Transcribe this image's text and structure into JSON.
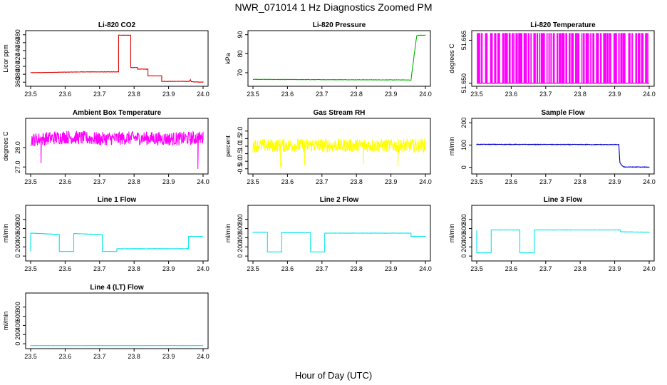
{
  "figure": {
    "title": "NWR_071014  1 Hz Diagnostics Zoomed PM",
    "xlabel": "Hour of Day (UTC)"
  },
  "chart_data": [
    {
      "type": "line",
      "title": "Li-820 CO2",
      "ylabel": "Licor ppm",
      "color": "#dd0000",
      "xlim": [
        23.5,
        24.0
      ],
      "xticks": [
        23.5,
        23.6,
        23.7,
        23.8,
        23.9,
        24.0
      ],
      "xtick_labels": [
        "23.5",
        "23.6",
        "23.7",
        "23.8",
        "23.9",
        "24.0"
      ],
      "ylim": [
        355,
        485
      ],
      "yticks": [
        360,
        380,
        400,
        420,
        440,
        460,
        480
      ],
      "ytick_labels": [
        "360",
        "380",
        "400",
        "420",
        "440",
        "460",
        "480"
      ],
      "noise": 0.4,
      "x": [
        23.5,
        23.65,
        23.755,
        23.755,
        23.79,
        23.79,
        23.81,
        23.81,
        23.84,
        23.84,
        23.88,
        23.88,
        23.96,
        23.963,
        23.966,
        24.0
      ],
      "y": [
        384,
        386,
        386,
        479,
        479,
        397,
        397,
        393,
        393,
        376,
        376,
        362,
        362,
        366,
        361,
        360
      ]
    },
    {
      "type": "line",
      "title": "Li-820 Pressure",
      "ylabel": "kPa",
      "color": "#00b000",
      "xlim": [
        23.5,
        24.0
      ],
      "xticks": [
        23.5,
        23.6,
        23.7,
        23.8,
        23.9,
        24.0
      ],
      "xtick_labels": [
        "23.5",
        "23.6",
        "23.7",
        "23.8",
        "23.9",
        "24.0"
      ],
      "ylim": [
        64,
        91
      ],
      "yticks": [
        70,
        80,
        90
      ],
      "ytick_labels": [
        "70",
        "80",
        "90"
      ],
      "noise": 0.1,
      "x": [
        23.5,
        23.95,
        23.958,
        23.97,
        23.975,
        23.98,
        24.0
      ],
      "y": [
        66.5,
        66.2,
        66,
        83,
        89.5,
        89.7,
        89.7
      ]
    },
    {
      "type": "bars",
      "title": "Li-820 Temperature",
      "ylabel": "degrees C",
      "color": "#ff00ff",
      "xlim": [
        23.5,
        24.0
      ],
      "xticks": [
        23.5,
        23.6,
        23.7,
        23.8,
        23.9,
        24.0
      ],
      "xtick_labels": [
        "23.5",
        "23.6",
        "23.7",
        "23.8",
        "23.9",
        "24.0"
      ],
      "ylim": [
        51.6497,
        51.6676
      ],
      "yticks": [
        51.65,
        51.665
      ],
      "ytick_labels": [
        "51.650",
        "51.665"
      ],
      "y_low": 51.65,
      "y_high": 51.6675,
      "bar_count": 70
    },
    {
      "type": "line",
      "title": "Ambient Box Temperature",
      "ylabel": "degrees C",
      "color": "#ff00ff",
      "xlim": [
        23.5,
        24.0
      ],
      "xticks": [
        23.5,
        23.6,
        23.7,
        23.8,
        23.9,
        24.0
      ],
      "xtick_labels": [
        "23.5",
        "23.6",
        "23.7",
        "23.8",
        "23.9",
        "24.0"
      ],
      "ylim": [
        26.75,
        29.4
      ],
      "yticks": [
        27.0,
        28.0
      ],
      "ytick_labels": [
        "27.0",
        "28.0"
      ],
      "noise": 0.35,
      "x": [
        23.5,
        23.6,
        23.7,
        23.8,
        23.9,
        24.0
      ],
      "y": [
        28.4,
        28.55,
        28.45,
        28.5,
        28.45,
        28.5
      ],
      "spikes_x": [
        23.53,
        23.985
      ],
      "spikes_y": [
        27.2,
        26.9
      ]
    },
    {
      "type": "line",
      "title": "Gas Stream RH",
      "ylabel": "percent",
      "color": "#ffff00",
      "xlim": [
        23.5,
        24.0
      ],
      "xticks": [
        23.5,
        23.6,
        23.7,
        23.8,
        23.9,
        24.0
      ],
      "xtick_labels": [
        "23.5",
        "23.6",
        "23.7",
        "23.8",
        "23.9",
        "24.0"
      ],
      "ylim": [
        -0.7,
        2.7
      ],
      "yticks": [
        -0.5,
        0.0,
        0.5,
        1.0,
        1.5,
        2.0
      ],
      "ytick_labels": [
        "-0.5",
        "0.0",
        "0.5",
        "1.0",
        "1.5",
        "2.0"
      ],
      "noise": 0.45,
      "x": [
        23.5,
        24.0
      ],
      "y": [
        1.05,
        1.05
      ],
      "spikes_x": [
        23.58,
        23.65,
        23.82,
        23.92
      ],
      "spikes_y": [
        -0.4,
        -0.3,
        -0.2,
        -0.35
      ]
    },
    {
      "type": "line",
      "title": "Sample Flow",
      "ylabel": "ml/min",
      "color": "#0000cc",
      "xlim": [
        23.5,
        24.0
      ],
      "xticks": [
        23.5,
        23.6,
        23.7,
        23.8,
        23.9,
        24.0
      ],
      "xtick_labels": [
        "23.5",
        "23.6",
        "23.7",
        "23.8",
        "23.9",
        "24.0"
      ],
      "ylim": [
        -20,
        210
      ],
      "yticks": [
        0,
        100,
        200
      ],
      "ytick_labels": [
        "0",
        "100",
        "200"
      ],
      "noise": 1.2,
      "x": [
        23.5,
        23.912,
        23.915,
        23.925,
        24.0
      ],
      "y": [
        103,
        102,
        20,
        2,
        1
      ]
    },
    {
      "type": "line",
      "title": "Line 1 Flow",
      "ylabel": "ml/min",
      "color": "#00e5ee",
      "xlim": [
        23.5,
        24.0
      ],
      "xticks": [
        23.5,
        23.6,
        23.7,
        23.8,
        23.9,
        24.0
      ],
      "xtick_labels": [
        "23.5",
        "23.6",
        "23.7",
        "23.8",
        "23.9",
        "24.0"
      ],
      "ylim": [
        -60,
        1060
      ],
      "yticks": [
        0,
        200,
        400,
        600,
        800
      ],
      "ytick_labels": [
        "0",
        "200",
        "400",
        "600",
        "800"
      ],
      "noise": 3,
      "x": [
        23.5,
        23.5,
        23.503,
        23.583,
        23.583,
        23.625,
        23.625,
        23.708,
        23.708,
        23.75,
        23.75,
        23.958,
        23.958,
        24.0
      ],
      "y": [
        100,
        500,
        500,
        470,
        100,
        100,
        490,
        470,
        100,
        100,
        160,
        160,
        430,
        430
      ]
    },
    {
      "type": "line",
      "title": "Line 2 Flow",
      "ylabel": "ml/min",
      "color": "#00e5ee",
      "xlim": [
        23.5,
        24.0
      ],
      "xticks": [
        23.5,
        23.6,
        23.7,
        23.8,
        23.9,
        24.0
      ],
      "xtick_labels": [
        "23.5",
        "23.6",
        "23.7",
        "23.8",
        "23.9",
        "24.0"
      ],
      "ylim": [
        -60,
        1060
      ],
      "yticks": [
        0,
        200,
        400,
        600,
        800
      ],
      "ytick_labels": [
        "0",
        "200",
        "400",
        "600",
        "800"
      ],
      "noise": 3,
      "x": [
        23.5,
        23.542,
        23.542,
        23.583,
        23.583,
        23.667,
        23.667,
        23.708,
        23.708,
        23.958,
        23.958,
        24.0
      ],
      "y": [
        520,
        520,
        90,
        90,
        510,
        510,
        90,
        90,
        500,
        500,
        430,
        430
      ]
    },
    {
      "type": "line",
      "title": "Line 3 Flow",
      "ylabel": "ml/min",
      "color": "#00e5ee",
      "xlim": [
        23.5,
        24.0
      ],
      "xticks": [
        23.5,
        23.6,
        23.7,
        23.8,
        23.9,
        24.0
      ],
      "xtick_labels": [
        "23.5",
        "23.6",
        "23.7",
        "23.8",
        "23.9",
        "24.0"
      ],
      "ylim": [
        -60,
        1060
      ],
      "yticks": [
        0,
        200,
        400,
        600,
        800
      ],
      "ytick_labels": [
        "0",
        "200",
        "400",
        "600",
        "800"
      ],
      "noise": 3,
      "x": [
        23.5,
        23.5,
        23.542,
        23.542,
        23.625,
        23.625,
        23.667,
        23.667,
        23.917,
        23.917,
        24.0
      ],
      "y": [
        560,
        70,
        70,
        570,
        570,
        70,
        70,
        570,
        570,
        530,
        520
      ]
    },
    {
      "type": "line",
      "title": "Line 4 (LT) Flow",
      "ylabel": "ml/min",
      "color": "#00e5ee",
      "xlim": [
        23.5,
        24.0
      ],
      "xticks": [
        23.5,
        23.6,
        23.7,
        23.8,
        23.9,
        24.0
      ],
      "xtick_labels": [
        "23.5",
        "23.6",
        "23.7",
        "23.8",
        "23.9",
        "24.0"
      ],
      "ylim": [
        -60,
        1060
      ],
      "yticks": [
        0,
        200,
        400,
        600,
        800
      ],
      "ytick_labels": [
        "0",
        "200",
        "400",
        "600",
        "800"
      ],
      "noise": 2,
      "x": [
        23.5,
        24.0
      ],
      "y": [
        -40,
        -40
      ]
    }
  ]
}
